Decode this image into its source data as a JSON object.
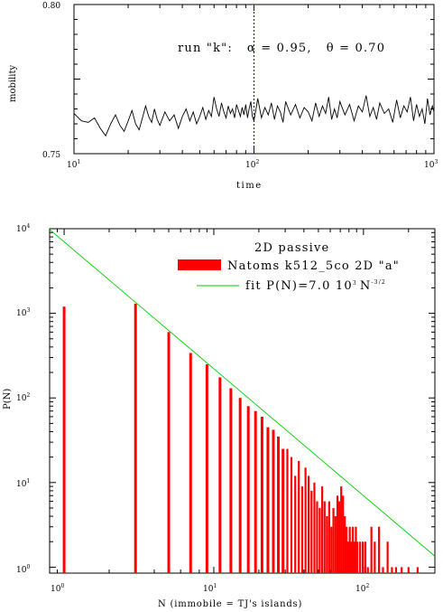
{
  "chart_data": [
    {
      "type": "line",
      "ylabel": "mobility",
      "xlabel": "time",
      "annotation": "run \"k\":   α = 0.95,   θ = 0.70",
      "x_scale": "log",
      "xlim": [
        10,
        1000
      ],
      "ylim": [
        0.75,
        0.8
      ],
      "x_tick_labels": [
        {
          "base": "10",
          "exp": "1"
        },
        {
          "base": "10",
          "exp": "2"
        },
        {
          "base": "10",
          "exp": "3"
        }
      ],
      "y_tick_labels": [
        "0.80",
        "0.75"
      ],
      "vline_x": 100,
      "vline_color": "#0000cc",
      "series": [
        {
          "color": "#000000",
          "x": [
            10,
            11,
            12,
            13,
            14,
            15,
            16,
            17,
            18,
            19,
            20,
            21,
            22,
            23,
            24,
            25,
            26,
            27,
            28,
            29,
            30,
            32,
            34,
            36,
            38,
            40,
            42,
            44,
            46,
            48,
            50,
            52,
            54,
            56,
            58,
            60,
            62,
            64,
            66,
            68,
            70,
            72,
            74,
            76,
            78,
            80,
            82,
            84,
            86,
            88,
            90,
            92,
            94,
            96,
            98,
            100,
            105,
            110,
            115,
            120,
            125,
            130,
            135,
            140,
            145,
            150,
            160,
            170,
            180,
            190,
            200,
            210,
            220,
            230,
            240,
            250,
            260,
            270,
            280,
            290,
            300,
            320,
            340,
            360,
            380,
            400,
            420,
            440,
            460,
            480,
            500,
            530,
            560,
            590,
            620,
            650,
            680,
            710,
            740,
            770,
            800,
            830,
            860,
            890,
            920,
            950,
            980,
            1000
          ],
          "y": [
            0.7635,
            0.761,
            0.7605,
            0.762,
            0.7585,
            0.756,
            0.76,
            0.763,
            0.7595,
            0.7575,
            0.761,
            0.7645,
            0.76,
            0.758,
            0.762,
            0.766,
            0.7625,
            0.7605,
            0.765,
            0.7615,
            0.7595,
            0.764,
            0.761,
            0.763,
            0.7585,
            0.7625,
            0.765,
            0.761,
            0.764,
            0.76,
            0.7625,
            0.7655,
            0.7615,
            0.7645,
            0.7625,
            0.769,
            0.765,
            0.7625,
            0.767,
            0.764,
            0.762,
            0.766,
            0.7635,
            0.765,
            0.762,
            0.7665,
            0.7645,
            0.7625,
            0.7655,
            0.763,
            0.7665,
            0.762,
            0.765,
            0.7675,
            0.7625,
            0.761,
            0.7685,
            0.762,
            0.7655,
            0.763,
            0.767,
            0.7615,
            0.766,
            0.764,
            0.7605,
            0.7675,
            0.763,
            0.7665,
            0.762,
            0.7655,
            0.764,
            0.761,
            0.767,
            0.7625,
            0.766,
            0.7635,
            0.769,
            0.7615,
            0.765,
            0.762,
            0.7675,
            0.763,
            0.7665,
            0.761,
            0.766,
            0.764,
            0.7695,
            0.7625,
            0.7655,
            0.7615,
            0.767,
            0.7635,
            0.765,
            0.7605,
            0.768,
            0.762,
            0.766,
            0.764,
            0.769,
            0.761,
            0.7665,
            0.7625,
            0.765,
            0.76,
            0.7685,
            0.763,
            0.766,
            0.764
          ]
        }
      ]
    },
    {
      "type": "bar",
      "title": "2D passive",
      "xlabel": "N (immobile = TJ's islands)",
      "ylabel": "P(N)",
      "x_scale": "log",
      "y_scale": "log",
      "xlim": [
        0.8,
        300
      ],
      "ylim": [
        0.85,
        10000
      ],
      "x_tick_labels": [
        {
          "base": "10",
          "exp": "0"
        },
        {
          "base": "10",
          "exp": "1"
        },
        {
          "base": "10",
          "exp": "2"
        }
      ],
      "y_tick_labels": [
        {
          "base": "10",
          "exp": "0"
        },
        {
          "base": "10",
          "exp": "1"
        },
        {
          "base": "10",
          "exp": "2"
        },
        {
          "base": "10",
          "exp": "3"
        },
        {
          "base": "10",
          "exp": "4"
        }
      ],
      "legend_position": "top-right",
      "series": [
        {
          "name": "N atoms k512_5co 2D \"a\"",
          "color": "#ff0000",
          "x": [
            1,
            3,
            5,
            7,
            9,
            11,
            13,
            15,
            17,
            19,
            21,
            23,
            25,
            27,
            29,
            31,
            33,
            35,
            37,
            39,
            41,
            43,
            45,
            47,
            49,
            51,
            53,
            55,
            57,
            59,
            61,
            63,
            65,
            67,
            69,
            71,
            73,
            75,
            77,
            79,
            81,
            83,
            85,
            87,
            89,
            91,
            95,
            99,
            103,
            107,
            113,
            119,
            127,
            135,
            145,
            155,
            165,
            180,
            200,
            230
          ],
          "values": [
            1200,
            1300,
            600,
            340,
            250,
            175,
            130,
            100,
            80,
            70,
            60,
            45,
            42,
            35,
            25,
            25,
            20,
            12,
            18,
            9,
            15,
            12,
            8,
            10,
            6,
            5,
            9,
            6,
            4,
            6,
            3,
            5,
            4,
            7,
            6,
            9,
            7,
            4,
            3,
            2,
            3,
            2,
            3,
            2,
            3,
            2,
            2,
            2,
            2,
            1,
            3,
            2,
            3,
            1,
            2,
            1,
            1,
            1,
            1,
            1
          ]
        },
        {
          "name": "fit P(N)=7.0 10³ N⁻³ᐟ²",
          "color": "#00cc00",
          "type": "line",
          "formula": "7000 * N^-1.5"
        }
      ],
      "legend": [
        {
          "label": "Natoms k512_5co 2D \"a\""
        },
        {
          "label_main": "fit P(N)=7.0 10",
          "label_exp1": "3",
          "label_mid": "N",
          "label_exp2": "-3/2"
        }
      ]
    }
  ]
}
